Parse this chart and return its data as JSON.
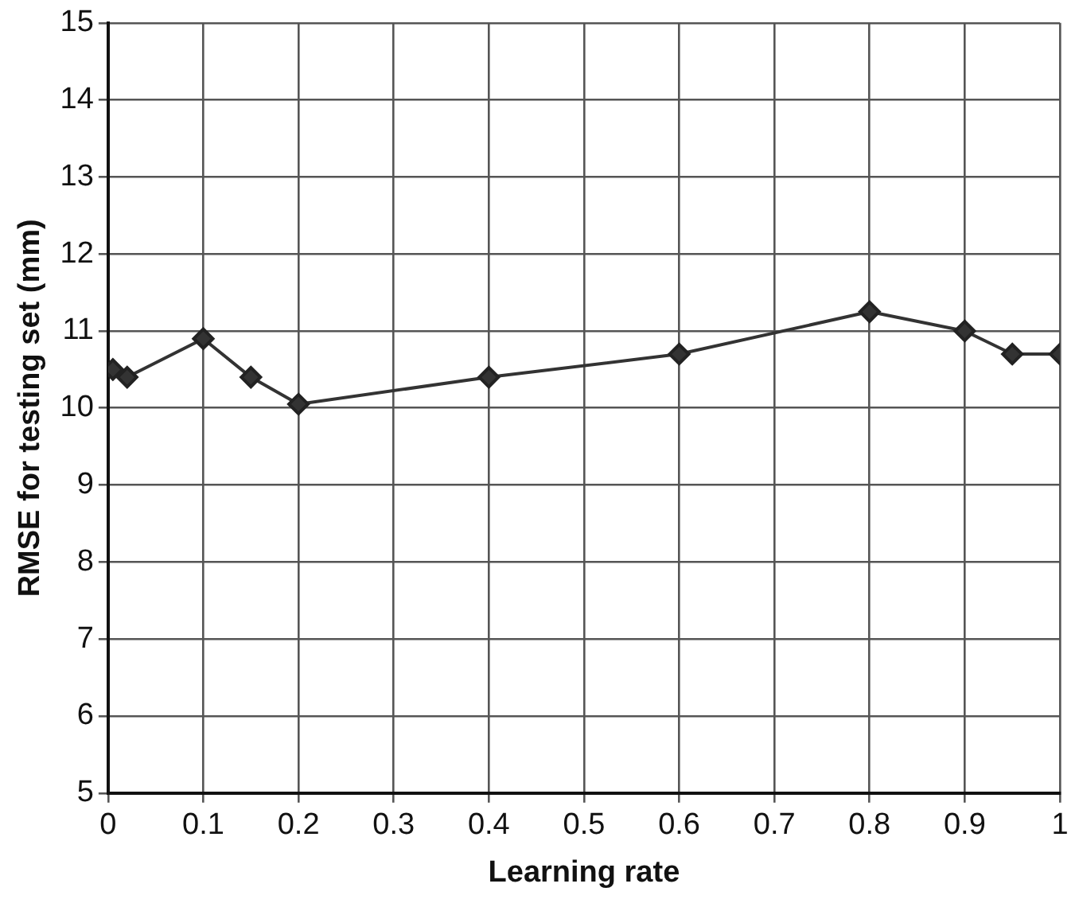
{
  "chart_data": {
    "type": "line",
    "xlabel": "Learning rate",
    "ylabel": "RMSE for testing set (mm)",
    "x": [
      0.005,
      0.02,
      0.1,
      0.15,
      0.2,
      0.4,
      0.6,
      0.8,
      0.9,
      0.95,
      1.0
    ],
    "series": [
      {
        "color": "#333333",
        "values": [
          10.5,
          10.4,
          10.9,
          10.4,
          10.05,
          10.4,
          10.7,
          11.25,
          11.0,
          10.7,
          10.7
        ]
      }
    ],
    "xlim": [
      0,
      1
    ],
    "xticks": [
      0,
      0.1,
      0.2,
      0.3,
      0.4,
      0.5,
      0.6,
      0.7,
      0.8,
      0.9,
      1
    ],
    "ylim": [
      5,
      15
    ],
    "yticks": [
      5,
      6,
      7,
      8,
      9,
      10,
      11,
      12,
      13,
      14,
      15
    ],
    "grid": true,
    "legend": false,
    "marker": "diamond",
    "line_style": "solid"
  }
}
